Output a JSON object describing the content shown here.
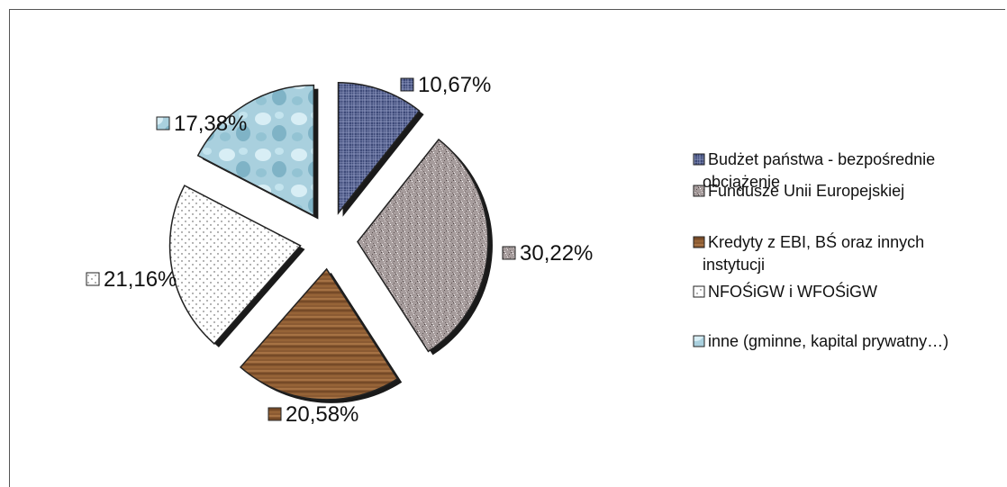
{
  "chart_data": {
    "type": "pie",
    "title": "",
    "exploded": true,
    "legend_position": "right",
    "series": [
      {
        "name": "Budżet państwa - bezpośrednie obciążenie",
        "value": 10.67,
        "label": "10,67%",
        "color": "#3e4a78",
        "pattern": "grid-blue"
      },
      {
        "name": "Fundusze Unii Europejskiej",
        "value": 30.22,
        "label": "30,22%",
        "color": "#a89e9e",
        "pattern": "granite"
      },
      {
        "name": "Kredyty z EBI, BŚ oraz innych instytucji",
        "value": 20.58,
        "label": "20,58%",
        "color": "#8a5a32",
        "pattern": "wood"
      },
      {
        "name": "NFOŚiGW i WFOŚiGW",
        "value": 21.16,
        "label": "21,16%",
        "color": "#ffffff",
        "pattern": "dots"
      },
      {
        "name": "inne (gminne, kapital prywatny…)",
        "value": 17.38,
        "label": "17,38%",
        "color": "#a9d0de",
        "pattern": "water"
      }
    ],
    "legend": [
      [
        "Budżet państwa - bezpośrednie",
        "obciążenie"
      ],
      [
        "Fundusze Unii Europejskiej"
      ],
      [
        "Kredyty z EBI, BŚ oraz innych",
        "instytucji"
      ],
      [
        "NFOŚiGW i WFOŚiGW"
      ],
      [
        "inne (gminne, kapital prywatny…)"
      ]
    ]
  }
}
